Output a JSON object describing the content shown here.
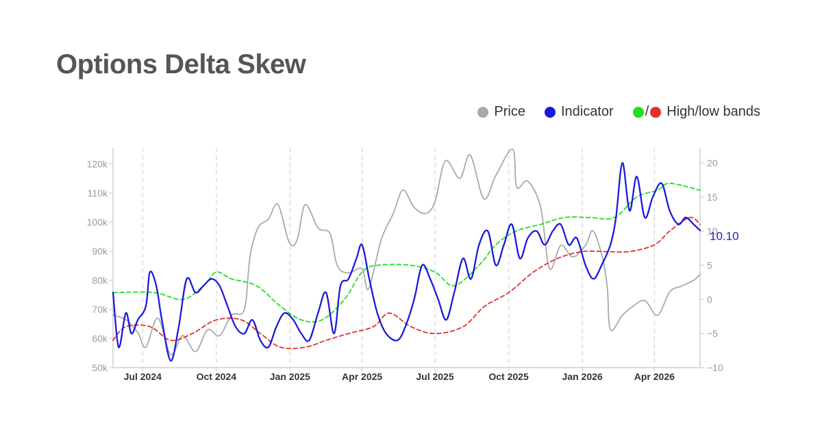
{
  "title": "Options Delta Skew",
  "legend": [
    {
      "label": "Price",
      "color": "#a9a9a9"
    },
    {
      "label": "Indicator",
      "color": "#1a1adc"
    },
    {
      "label": "High/low bands",
      "colors": [
        "#22dd22",
        "#e03030"
      ],
      "separator": "/"
    }
  ],
  "chart_data": {
    "type": "line",
    "x_axis": {
      "range": [
        "2024-05-25",
        "2026-05-28"
      ],
      "ticks": [
        "Jul 2024",
        "Oct 2024",
        "Jan 2025",
        "Apr 2025",
        "Jul 2025",
        "Oct 2025",
        "Jan 2026",
        "Apr 2026"
      ],
      "tick_dates": [
        "2024-07-01",
        "2024-10-01",
        "2025-01-01",
        "2025-04-01",
        "2025-07-01",
        "2025-10-01",
        "2026-01-01",
        "2026-04-01"
      ],
      "gridlines": "dashed-vertical"
    },
    "y_left": {
      "range": [
        50000,
        125000
      ],
      "ticks": [
        "50k",
        "60k",
        "70k",
        "80k",
        "90k",
        "100k",
        "110k",
        "120k"
      ],
      "tick_values": [
        50000,
        60000,
        70000,
        80000,
        90000,
        100000,
        110000,
        120000
      ]
    },
    "y_right": {
      "range": [
        -10,
        22
      ],
      "ticks": [
        "−10",
        "−5",
        "0",
        "5",
        "10",
        "15",
        "20"
      ],
      "tick_values": [
        -10,
        -5,
        0,
        5,
        10,
        15,
        20
      ]
    },
    "last_value_label": "10.10",
    "series": [
      {
        "name": "Price",
        "axis": "left",
        "color": "#a9a9a9",
        "style": "solid",
        "points": [
          [
            "2024-05-25",
            68000
          ],
          [
            "2024-06-10",
            66500
          ],
          [
            "2024-06-25",
            62000
          ],
          [
            "2024-07-05",
            57000
          ],
          [
            "2024-07-20",
            67000
          ],
          [
            "2024-08-05",
            54500
          ],
          [
            "2024-08-20",
            61000
          ],
          [
            "2024-09-05",
            55500
          ],
          [
            "2024-09-20",
            63000
          ],
          [
            "2024-10-05",
            61000
          ],
          [
            "2024-10-20",
            68000
          ],
          [
            "2024-11-05",
            70000
          ],
          [
            "2024-11-12",
            88000
          ],
          [
            "2024-11-22",
            98000
          ],
          [
            "2024-12-05",
            101000
          ],
          [
            "2024-12-17",
            106000
          ],
          [
            "2024-12-31",
            93000
          ],
          [
            "2025-01-10",
            94000
          ],
          [
            "2025-01-20",
            106000
          ],
          [
            "2025-02-05",
            98000
          ],
          [
            "2025-02-20",
            96000
          ],
          [
            "2025-03-01",
            85000
          ],
          [
            "2025-03-15",
            82500
          ],
          [
            "2025-04-01",
            84000
          ],
          [
            "2025-04-09",
            77000
          ],
          [
            "2025-04-25",
            94000
          ],
          [
            "2025-05-10",
            103000
          ],
          [
            "2025-05-22",
            111000
          ],
          [
            "2025-06-05",
            105000
          ],
          [
            "2025-06-20",
            103000
          ],
          [
            "2025-07-01",
            107000
          ],
          [
            "2025-07-14",
            121000
          ],
          [
            "2025-08-01",
            115000
          ],
          [
            "2025-08-14",
            123000
          ],
          [
            "2025-08-31",
            108000
          ],
          [
            "2025-09-15",
            116000
          ],
          [
            "2025-10-06",
            125000
          ],
          [
            "2025-10-11",
            112000
          ],
          [
            "2025-10-25",
            114000
          ],
          [
            "2025-11-10",
            105000
          ],
          [
            "2025-11-21",
            84000
          ],
          [
            "2025-12-05",
            92000
          ],
          [
            "2025-12-20",
            88000
          ],
          [
            "2026-01-05",
            92000
          ],
          [
            "2026-01-14",
            97000
          ],
          [
            "2026-01-25",
            89000
          ],
          [
            "2026-02-01",
            78000
          ],
          [
            "2026-02-05",
            63000
          ],
          [
            "2026-02-20",
            68000
          ],
          [
            "2026-03-05",
            71000
          ],
          [
            "2026-03-20",
            73000
          ],
          [
            "2026-04-05",
            68000
          ],
          [
            "2026-04-20",
            76000
          ],
          [
            "2026-05-05",
            78000
          ],
          [
            "2026-05-20",
            80000
          ],
          [
            "2026-05-28",
            82000
          ]
        ]
      },
      {
        "name": "Indicator",
        "axis": "right",
        "color": "#1a1adc",
        "style": "solid",
        "points": [
          [
            "2024-05-25",
            1
          ],
          [
            "2024-06-01",
            -7
          ],
          [
            "2024-06-10",
            -2
          ],
          [
            "2024-06-17",
            -5
          ],
          [
            "2024-06-25",
            -3
          ],
          [
            "2024-07-05",
            -1
          ],
          [
            "2024-07-10",
            4
          ],
          [
            "2024-07-18",
            2
          ],
          [
            "2024-07-25",
            -3
          ],
          [
            "2024-08-05",
            -9
          ],
          [
            "2024-08-15",
            -4
          ],
          [
            "2024-08-25",
            3
          ],
          [
            "2024-09-05",
            1
          ],
          [
            "2024-09-15",
            2
          ],
          [
            "2024-09-25",
            3
          ],
          [
            "2024-10-05",
            2
          ],
          [
            "2024-10-15",
            -1
          ],
          [
            "2024-10-25",
            -4
          ],
          [
            "2024-11-05",
            -5
          ],
          [
            "2024-11-15",
            -3
          ],
          [
            "2024-11-25",
            -6
          ],
          [
            "2024-12-05",
            -7
          ],
          [
            "2024-12-15",
            -4
          ],
          [
            "2024-12-25",
            -2
          ],
          [
            "2025-01-05",
            -3
          ],
          [
            "2025-01-15",
            -5
          ],
          [
            "2025-01-25",
            -6
          ],
          [
            "2025-02-05",
            -2
          ],
          [
            "2025-02-15",
            1
          ],
          [
            "2025-02-25",
            -5
          ],
          [
            "2025-03-05",
            2
          ],
          [
            "2025-03-15",
            3
          ],
          [
            "2025-03-25",
            6
          ],
          [
            "2025-04-01",
            8
          ],
          [
            "2025-04-10",
            3
          ],
          [
            "2025-04-20",
            -2
          ],
          [
            "2025-05-01",
            -5
          ],
          [
            "2025-05-15",
            -6
          ],
          [
            "2025-05-25",
            -4
          ],
          [
            "2025-06-05",
            0
          ],
          [
            "2025-06-15",
            5
          ],
          [
            "2025-06-25",
            3
          ],
          [
            "2025-07-05",
            0
          ],
          [
            "2025-07-15",
            -3
          ],
          [
            "2025-07-25",
            1
          ],
          [
            "2025-08-05",
            6
          ],
          [
            "2025-08-15",
            3
          ],
          [
            "2025-08-25",
            8
          ],
          [
            "2025-09-05",
            10
          ],
          [
            "2025-09-15",
            5
          ],
          [
            "2025-09-25",
            8
          ],
          [
            "2025-10-05",
            11
          ],
          [
            "2025-10-15",
            6
          ],
          [
            "2025-10-25",
            9
          ],
          [
            "2025-11-05",
            10
          ],
          [
            "2025-11-15",
            8
          ],
          [
            "2025-11-25",
            10
          ],
          [
            "2025-12-05",
            11
          ],
          [
            "2025-12-15",
            8
          ],
          [
            "2025-12-25",
            9
          ],
          [
            "2026-01-05",
            5
          ],
          [
            "2026-01-15",
            3
          ],
          [
            "2026-01-25",
            5
          ],
          [
            "2026-02-05",
            8
          ],
          [
            "2026-02-12",
            12
          ],
          [
            "2026-02-20",
            20
          ],
          [
            "2026-03-01",
            13
          ],
          [
            "2026-03-10",
            18
          ],
          [
            "2026-03-20",
            12
          ],
          [
            "2026-03-30",
            15
          ],
          [
            "2026-04-10",
            17
          ],
          [
            "2026-04-20",
            13
          ],
          [
            "2026-05-01",
            11
          ],
          [
            "2026-05-10",
            12
          ],
          [
            "2026-05-20",
            11
          ],
          [
            "2026-05-28",
            10.1
          ]
        ]
      },
      {
        "name": "High band",
        "axis": "right",
        "color": "#22dd22",
        "style": "dashed",
        "points": [
          [
            "2024-05-25",
            1
          ],
          [
            "2024-07-15",
            1
          ],
          [
            "2024-08-20",
            0
          ],
          [
            "2024-09-15",
            2
          ],
          [
            "2024-10-01",
            4
          ],
          [
            "2024-10-20",
            3
          ],
          [
            "2024-11-20",
            2
          ],
          [
            "2024-12-20",
            -1
          ],
          [
            "2025-01-15",
            -3
          ],
          [
            "2025-02-10",
            -3
          ],
          [
            "2025-03-10",
            0
          ],
          [
            "2025-04-01",
            4
          ],
          [
            "2025-04-20",
            5
          ],
          [
            "2025-06-01",
            5
          ],
          [
            "2025-07-01",
            4
          ],
          [
            "2025-07-25",
            2
          ],
          [
            "2025-08-25",
            5
          ],
          [
            "2025-09-15",
            8
          ],
          [
            "2025-10-10",
            10
          ],
          [
            "2025-11-10",
            11
          ],
          [
            "2025-12-10",
            12
          ],
          [
            "2026-01-10",
            12
          ],
          [
            "2026-02-10",
            12
          ],
          [
            "2026-03-10",
            15
          ],
          [
            "2026-04-05",
            16
          ],
          [
            "2026-04-20",
            17
          ],
          [
            "2026-05-28",
            16
          ]
        ]
      },
      {
        "name": "Low band",
        "axis": "right",
        "color": "#e03030",
        "style": "dashed",
        "points": [
          [
            "2024-05-25",
            -6
          ],
          [
            "2024-06-10",
            -4
          ],
          [
            "2024-07-10",
            -4
          ],
          [
            "2024-08-05",
            -6
          ],
          [
            "2024-09-01",
            -5
          ],
          [
            "2024-10-01",
            -3
          ],
          [
            "2024-11-01",
            -3
          ],
          [
            "2024-11-25",
            -5
          ],
          [
            "2024-12-20",
            -7
          ],
          [
            "2025-01-20",
            -7
          ],
          [
            "2025-02-15",
            -6
          ],
          [
            "2025-03-15",
            -5
          ],
          [
            "2025-04-15",
            -4
          ],
          [
            "2025-05-05",
            -2
          ],
          [
            "2025-06-01",
            -4
          ],
          [
            "2025-07-01",
            -5
          ],
          [
            "2025-08-05",
            -4
          ],
          [
            "2025-09-01",
            -1
          ],
          [
            "2025-10-01",
            1
          ],
          [
            "2025-11-01",
            4
          ],
          [
            "2025-12-01",
            6
          ],
          [
            "2026-01-01",
            7
          ],
          [
            "2026-02-01",
            7
          ],
          [
            "2026-03-01",
            7
          ],
          [
            "2026-04-01",
            8
          ],
          [
            "2026-04-20",
            10
          ],
          [
            "2026-05-15",
            12
          ],
          [
            "2026-05-28",
            11
          ]
        ]
      }
    ]
  }
}
